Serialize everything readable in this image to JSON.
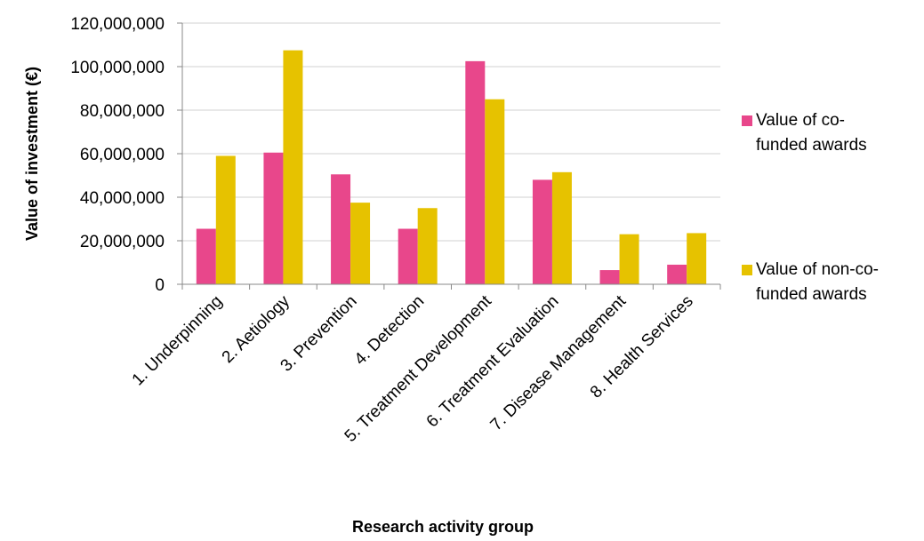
{
  "chart_data": {
    "type": "bar",
    "xlabel": "Research activity group",
    "ylabel": "Value of investment (€)",
    "ylim": [
      0,
      120000000
    ],
    "yticks": [
      {
        "value": 0,
        "label": "0"
      },
      {
        "value": 20000000,
        "label": "20,000,000"
      },
      {
        "value": 40000000,
        "label": "40,000,000"
      },
      {
        "value": 60000000,
        "label": "60,000,000"
      },
      {
        "value": 80000000,
        "label": "80,000,000"
      },
      {
        "value": 100000000,
        "label": "100,000,000"
      },
      {
        "value": 120000000,
        "label": "120,000,000"
      }
    ],
    "grid": true,
    "legend_position": "right",
    "categories": [
      "1. Underpinning",
      "2. Aetiology",
      "3. Prevention",
      "4. Detection",
      "5. Treatment Development",
      "6. Treatment Evaluation",
      "7. Disease Management",
      "8. Health Services"
    ],
    "series": [
      {
        "name": "Value of co-funded awards",
        "legend_text": [
          "Value of co-",
          "funded awards"
        ],
        "color": "#E8478B",
        "values": [
          25500000,
          60500000,
          50500000,
          25500000,
          102500000,
          48000000,
          6500000,
          9000000
        ]
      },
      {
        "name": "Value of non-co-funded awards",
        "legend_text": [
          "Value of non-co-",
          "funded awards"
        ],
        "color": "#E6C200",
        "values": [
          59000000,
          107500000,
          37500000,
          35000000,
          85000000,
          51500000,
          23000000,
          23500000
        ]
      }
    ]
  }
}
